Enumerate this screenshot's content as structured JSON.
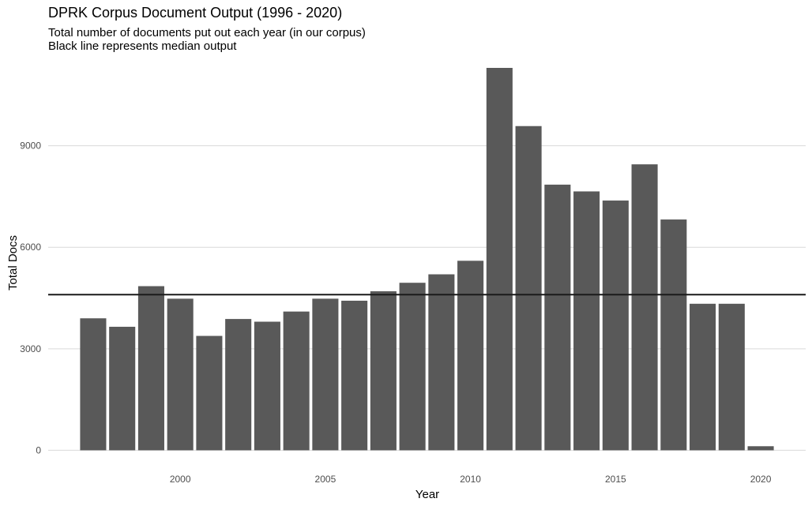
{
  "chart_data": {
    "type": "bar",
    "title": "DPRK Corpus Document Output (1996 - 2020)",
    "subtitle": "Total number of documents put out each year (in our corpus)\nBlack line represents median output",
    "xlabel": "Year",
    "ylabel": "Total Docs",
    "x": [
      1997,
      1998,
      1999,
      2000,
      2001,
      2002,
      2003,
      2004,
      2005,
      2006,
      2007,
      2008,
      2009,
      2010,
      2011,
      2012,
      2013,
      2014,
      2015,
      2016,
      2017,
      2018,
      2019,
      2020
    ],
    "values": [
      3900,
      3650,
      4850,
      4480,
      3380,
      3880,
      3800,
      4100,
      4480,
      4420,
      4700,
      4950,
      5200,
      5600,
      11300,
      9580,
      7850,
      7650,
      7380,
      8450,
      6820,
      4330,
      4330,
      120
    ],
    "median": 4600,
    "xlim": [
      1995.45,
      2021.55
    ],
    "ylim": [
      -550,
      11300
    ],
    "xticks": [
      2000,
      2005,
      2010,
      2015,
      2020
    ],
    "yticks": [
      0,
      3000,
      6000,
      9000
    ],
    "bar_color": "#595959",
    "grid_color": "#d9d9d9",
    "median_color": "#1a1a1a",
    "grid": true,
    "legend": "none"
  }
}
